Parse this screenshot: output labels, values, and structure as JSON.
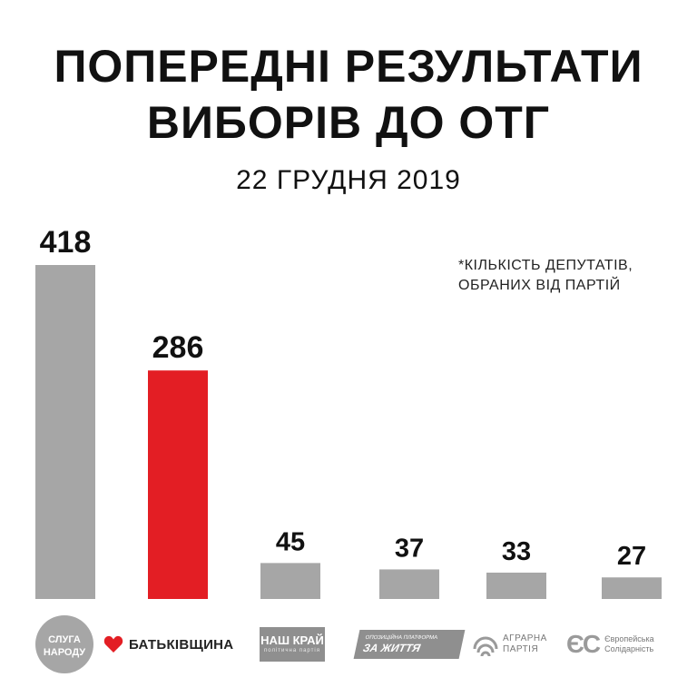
{
  "title_lines": [
    "ПОПЕРЕДНІ РЕЗУЛЬТАТИ",
    "ВИБОРІВ ДО ОТГ"
  ],
  "date": "22 ГРУДНЯ 2019",
  "note_lines": [
    "*КІЛЬКІСТЬ ДЕПУТАТІВ,",
    "ОБРАНИХ ВІД ПАРТІЙ"
  ],
  "colors": {
    "default_bar": "#a6a6a6",
    "highlight_bar": "#e31e24",
    "text": "#111111"
  },
  "chart_data": {
    "type": "bar",
    "categories": [
      "Слуга народу",
      "Батьківщина",
      "Наш край",
      "Опозиційна платформа — За життя",
      "Аграрна партія",
      "Європейська Солідарність"
    ],
    "values": [
      418,
      286,
      45,
      37,
      33,
      27
    ],
    "bar_colors": [
      "#a6a6a6",
      "#e31e24",
      "#a6a6a6",
      "#a6a6a6",
      "#a6a6a6",
      "#a6a6a6"
    ],
    "ylim": [
      0,
      418
    ],
    "grid": false,
    "show_axes": false
  },
  "logos": {
    "sluha": {
      "line1": "СЛУГА",
      "line2": "НАРОДУ",
      "icon": "circle-logo"
    },
    "batk": {
      "text": "БАТЬКІВЩИНА",
      "icon": "heart-icon",
      "color": "#e31e24"
    },
    "nash": {
      "text": "НАШ КРАЙ",
      "sub": "політична партія"
    },
    "opz": {
      "small": "ОПОЗИЦІЙНА ПЛАТФОРМА",
      "text": "ЗА ЖИТТЯ"
    },
    "agr": {
      "line1": "АГРАРНА",
      "line2": "ПАРТІЯ",
      "icon": "wheat-arc-icon"
    },
    "es": {
      "mark": "ЄС",
      "line1": "Європейська",
      "line2": "Солідарність"
    }
  }
}
